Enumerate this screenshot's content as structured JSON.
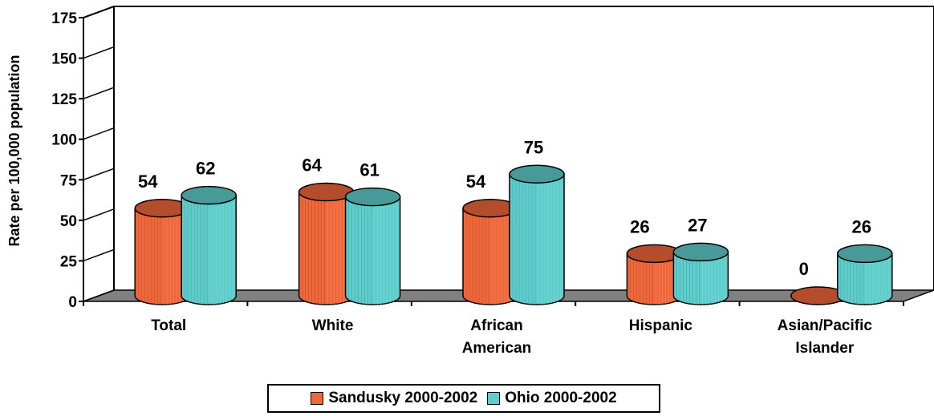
{
  "chart_data": {
    "type": "bar",
    "categories": [
      [
        "Total"
      ],
      [
        "White"
      ],
      [
        "African",
        "American"
      ],
      [
        "Hispanic"
      ],
      [
        "Asian/Pacific",
        "Islander"
      ]
    ],
    "series": [
      {
        "name": "Sandusky 2000-2002",
        "values": [
          54,
          64,
          54,
          26,
          0
        ],
        "color": "#f0673a"
      },
      {
        "name": "Ohio 2000-2002",
        "values": [
          62,
          61,
          75,
          27,
          26
        ],
        "color": "#5ecdcb"
      }
    ],
    "ylabel": "Rate per 100,000 population",
    "ylim": [
      0,
      175
    ],
    "yticks": [
      0,
      25,
      50,
      75,
      100,
      125,
      150,
      175
    ],
    "grid": false,
    "legend_position": "bottom"
  }
}
